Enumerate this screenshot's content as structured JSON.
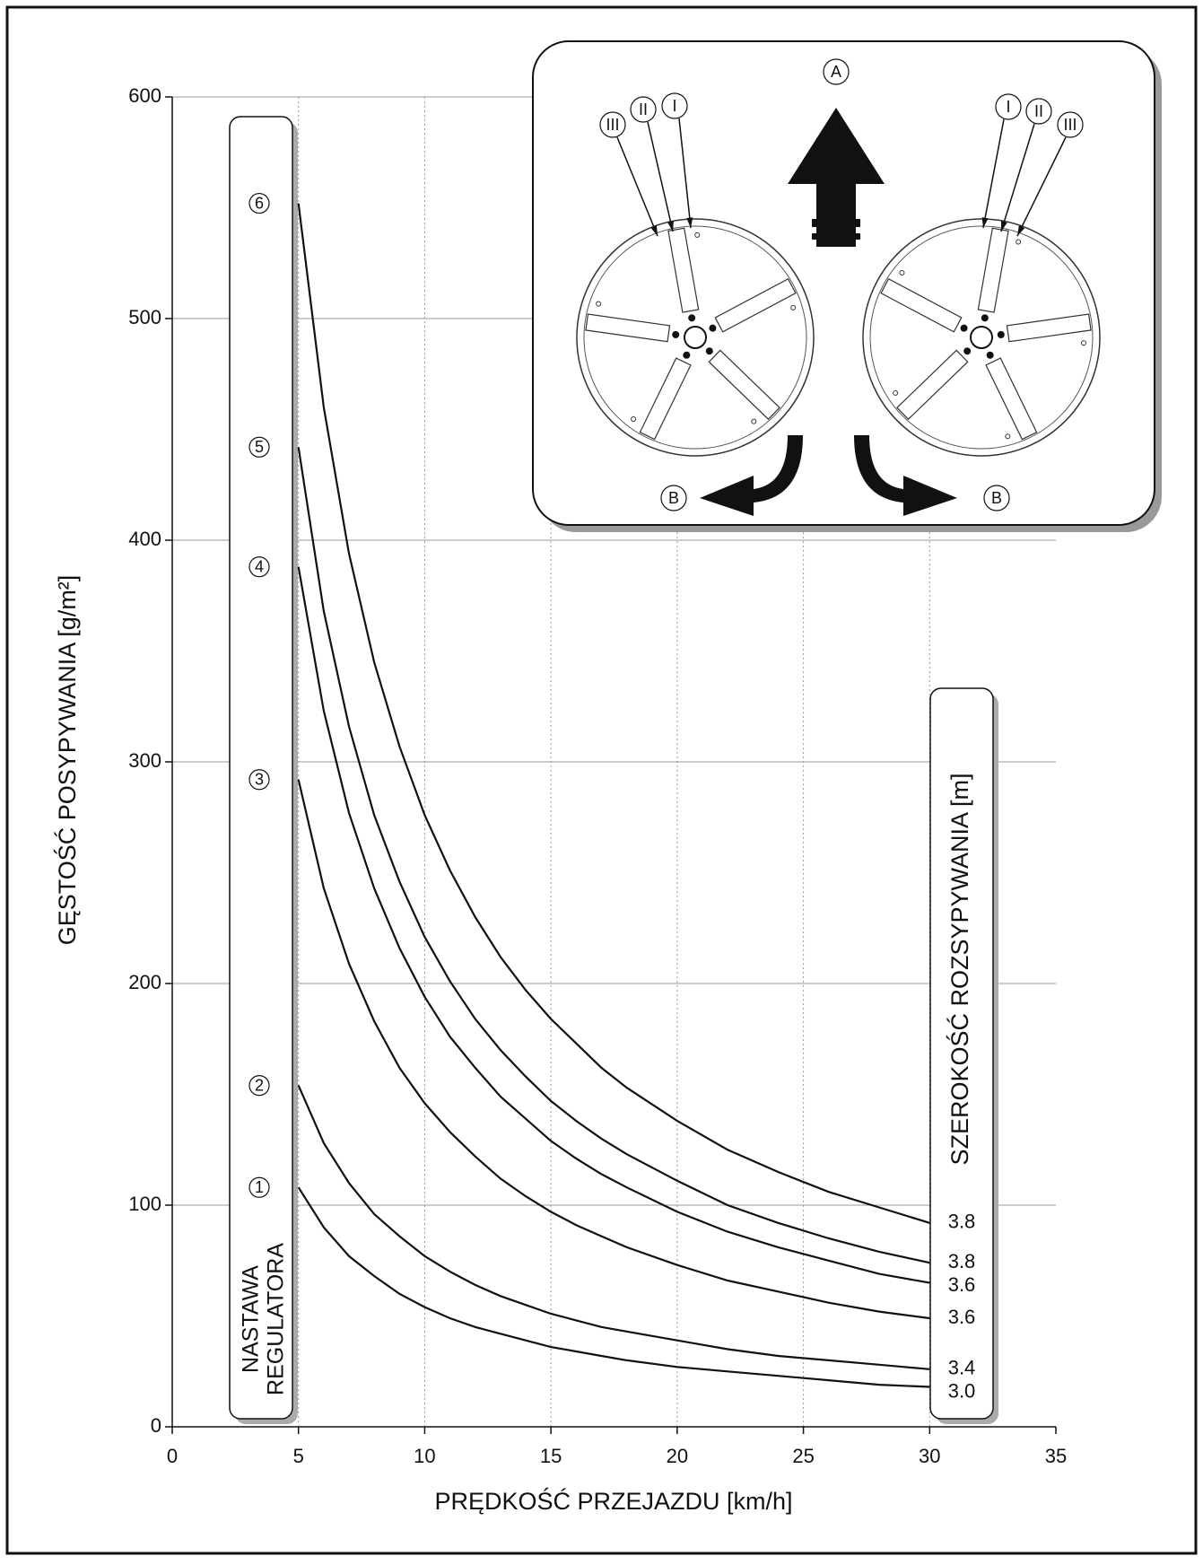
{
  "chart_data": {
    "type": "line",
    "x_label": "PRĘDKOŚĆ PRZEJAZDU [km/h]",
    "y_label": "GĘSTOŚĆ POSYPYWANIA [g/m²]",
    "left_box_label": [
      "NASTAWA",
      "REGULATORA"
    ],
    "right_box_label": "SZEROKOŚĆ ROZSYPYWANIA [m]",
    "x": [
      5,
      6,
      7,
      8,
      9,
      10,
      11,
      12,
      13,
      14,
      15,
      16,
      17,
      18,
      20,
      22,
      24,
      26,
      28,
      30
    ],
    "series": [
      {
        "name": "6",
        "width_label": "3.8",
        "color": "#111111",
        "values": [
          552,
          460,
          394,
          345,
          307,
          276,
          251,
          230,
          212,
          197,
          184,
          173,
          162,
          153,
          138,
          125,
          115,
          106,
          99,
          92
        ]
      },
      {
        "name": "5",
        "width_label": "3.8",
        "color": "#111111",
        "values": [
          442,
          368,
          316,
          276,
          246,
          221,
          201,
          184,
          170,
          158,
          147,
          138,
          130,
          123,
          111,
          100,
          92,
          85,
          79,
          74
        ]
      },
      {
        "name": "4",
        "width_label": "3.6",
        "color": "#111111",
        "values": [
          388,
          323,
          277,
          243,
          216,
          194,
          176,
          162,
          149,
          139,
          129,
          121,
          114,
          108,
          97,
          88,
          81,
          75,
          69,
          65
        ]
      },
      {
        "name": "3",
        "width_label": "3.6",
        "color": "#111111",
        "values": [
          292,
          243,
          209,
          183,
          162,
          146,
          133,
          122,
          112,
          104,
          97,
          91,
          86,
          81,
          73,
          66,
          61,
          56,
          52,
          49
        ]
      },
      {
        "name": "2",
        "width_label": "3.4",
        "color": "#111111",
        "values": [
          154,
          128,
          110,
          96,
          86,
          77,
          70,
          64,
          59,
          55,
          51,
          48,
          45,
          43,
          39,
          35,
          32,
          30,
          28,
          26
        ]
      },
      {
        "name": "1",
        "width_label": "3.0",
        "color": "#111111",
        "values": [
          108,
          90,
          77,
          68,
          60,
          54,
          49,
          45,
          42,
          39,
          36,
          34,
          32,
          30,
          27,
          25,
          23,
          21,
          19,
          18
        ]
      }
    ],
    "xlim": [
      0,
      35
    ],
    "xticks": [
      0,
      5,
      10,
      15,
      20,
      25,
      30,
      35
    ],
    "ylim": [
      0,
      600
    ],
    "yticks": [
      0,
      100,
      200,
      300,
      400,
      500,
      600
    ],
    "grid": true,
    "inset_labels": {
      "direction": "A",
      "spread": [
        "B",
        "B"
      ],
      "left_vanes": [
        "III",
        "II",
        "I"
      ],
      "right_vanes": [
        "I",
        "II",
        "III"
      ]
    }
  }
}
